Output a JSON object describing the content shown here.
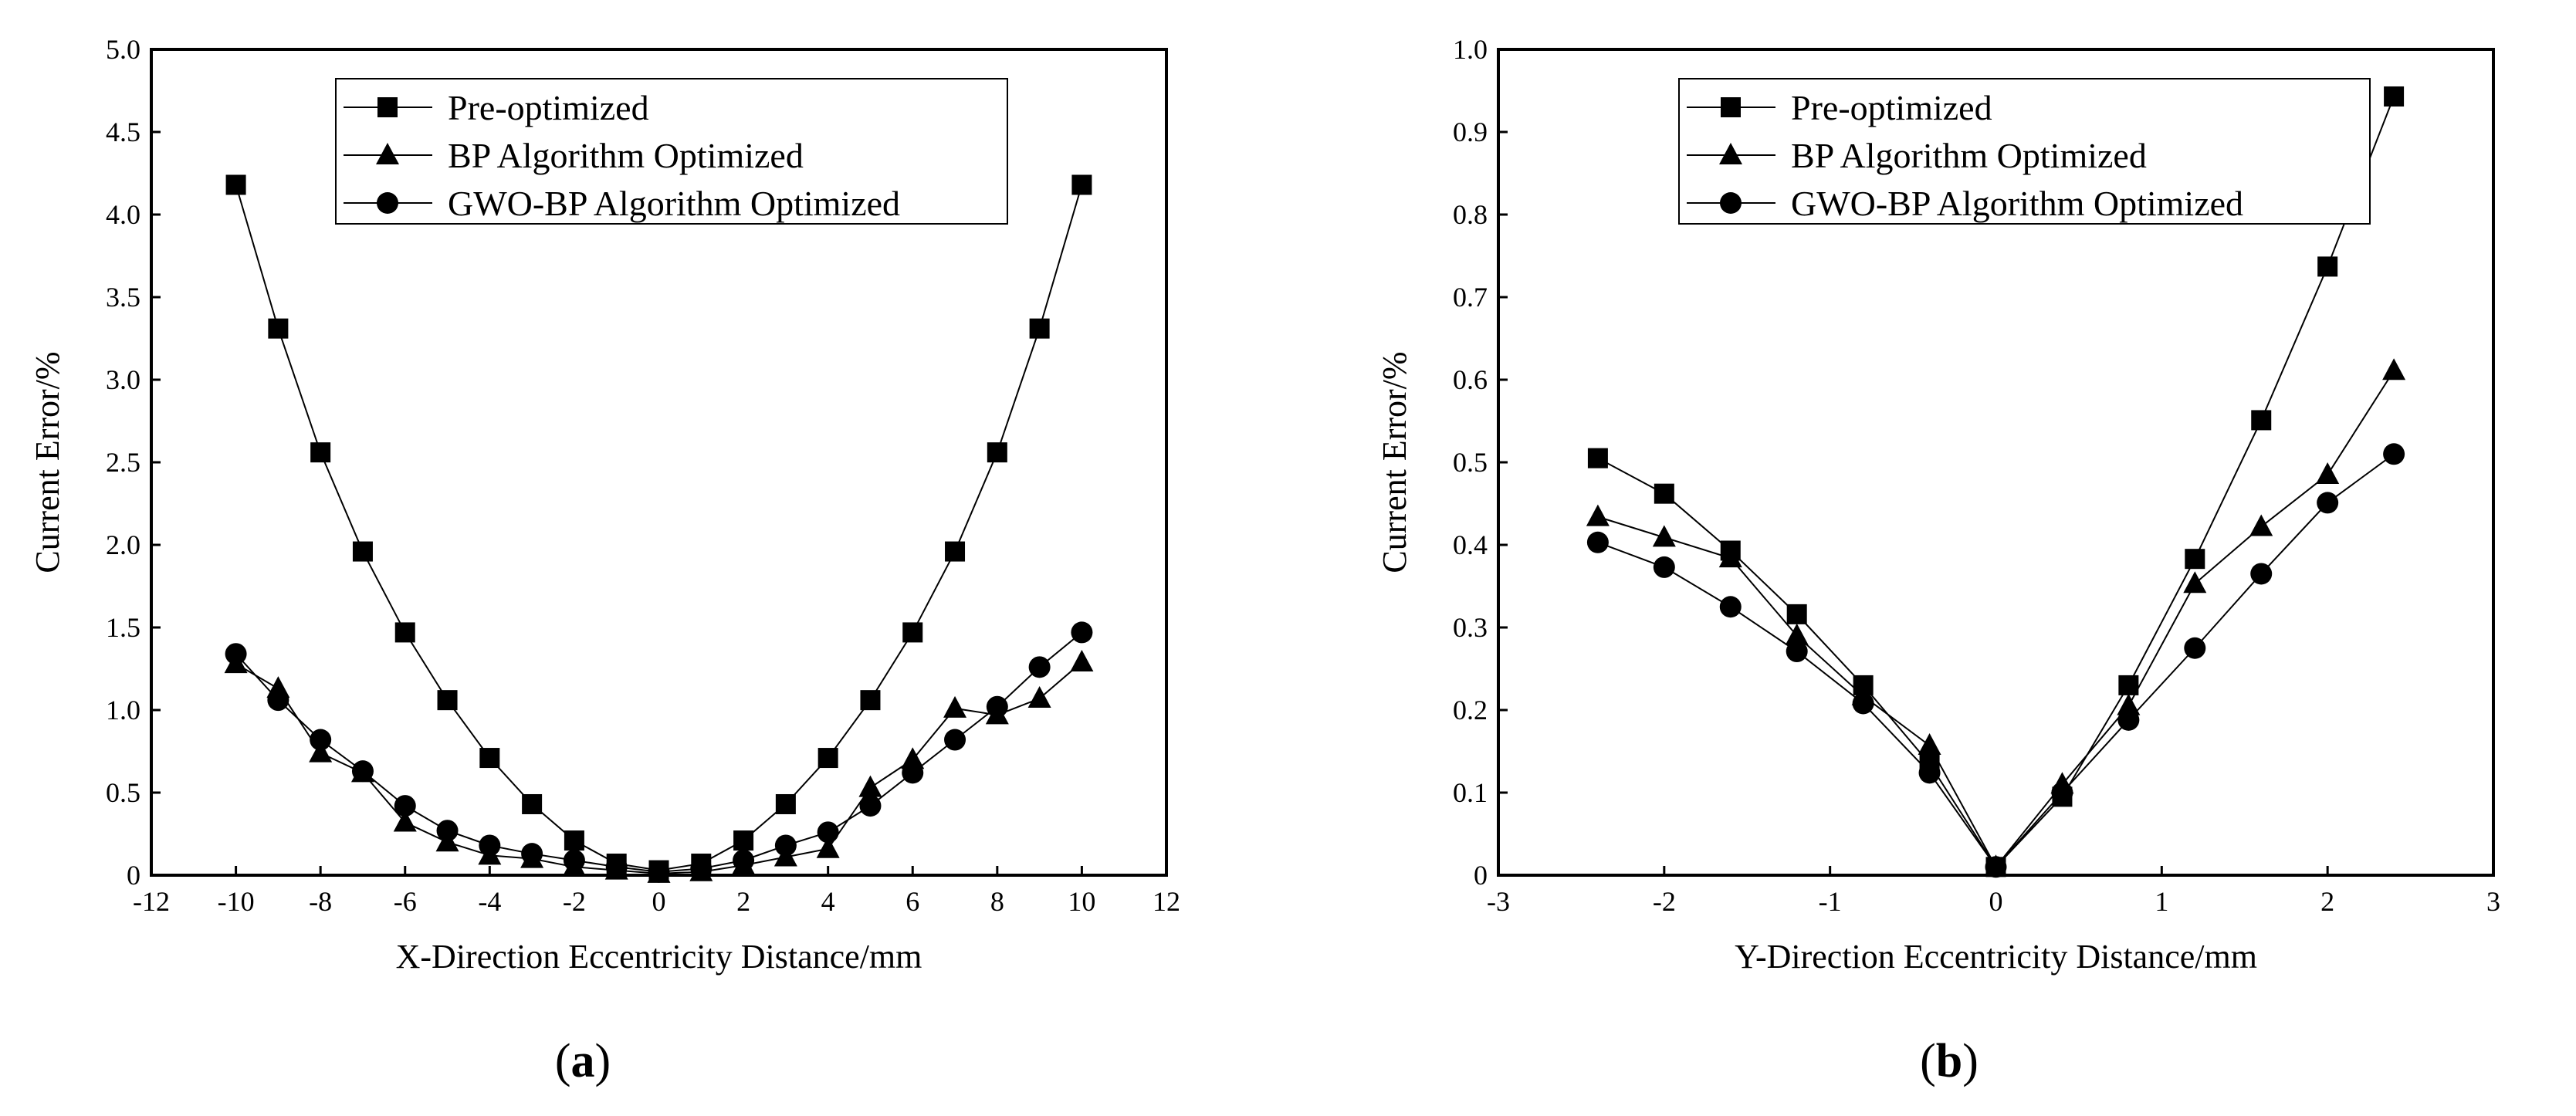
{
  "chart_data": [
    {
      "type": "line",
      "caption": "(a)",
      "caption_letter": "a",
      "xlabel": "X-Direction Eccentricity Distance/mm",
      "ylabel": "Current Error/%",
      "xlim": [
        -12,
        12
      ],
      "ylim": [
        0,
        5
      ],
      "xticks": [
        -12,
        -10,
        -8,
        -6,
        -4,
        -2,
        0,
        2,
        4,
        6,
        8,
        10,
        12
      ],
      "yticks": [
        "0",
        "0.5",
        "1.0",
        "1.5",
        "2.0",
        "2.5",
        "3.0",
        "3.5",
        "4.0",
        "4.5",
        "5.0"
      ],
      "legend_position": "top-center",
      "x": [
        -10,
        -9,
        -8,
        -7,
        -6,
        -5,
        -4,
        -3,
        -2,
        -1,
        0,
        1,
        2,
        3,
        4,
        5,
        6,
        7,
        8,
        9,
        10
      ],
      "series": [
        {
          "name": "Pre-optimized",
          "marker": "square",
          "values": [
            4.18,
            3.31,
            2.56,
            1.96,
            1.47,
            1.06,
            0.71,
            0.43,
            0.21,
            0.07,
            0.03,
            0.07,
            0.21,
            0.43,
            0.71,
            1.06,
            1.47,
            1.96,
            2.56,
            3.31,
            4.18
          ]
        },
        {
          "name": "BP Algorithm Optimized",
          "marker": "triangle",
          "values": [
            1.28,
            1.13,
            0.74,
            0.62,
            0.32,
            0.2,
            0.12,
            0.1,
            0.05,
            0.03,
            0.01,
            0.02,
            0.06,
            0.11,
            0.16,
            0.53,
            0.7,
            1.01,
            0.97,
            1.07,
            1.29
          ]
        },
        {
          "name": "GWO-BP Algorithm Optimized",
          "marker": "circle",
          "values": [
            1.34,
            1.06,
            0.82,
            0.63,
            0.42,
            0.27,
            0.18,
            0.13,
            0.09,
            0.05,
            0.02,
            0.04,
            0.09,
            0.18,
            0.26,
            0.42,
            0.62,
            0.82,
            1.02,
            1.26,
            1.47
          ]
        }
      ]
    },
    {
      "type": "line",
      "caption": "(b)",
      "caption_letter": "b",
      "xlabel": "Y-Direction Eccentricity Distance/mm",
      "ylabel": "Current Error/%",
      "xlim": [
        -3,
        3
      ],
      "ylim": [
        0,
        1
      ],
      "xticks": [
        -3,
        -2,
        -1,
        0,
        1,
        2,
        3
      ],
      "yticks": [
        "0",
        "0.1",
        "0.2",
        "0.3",
        "0.4",
        "0.5",
        "0.6",
        "0.7",
        "0.8",
        "0.9",
        "1.0"
      ],
      "legend_position": "top-center",
      "x": [
        -2.4,
        -2,
        -1.6,
        -1.2,
        -0.8,
        -0.4,
        0,
        0.4,
        0.8,
        1.2,
        1.6,
        2,
        2.4
      ],
      "series": [
        {
          "name": "Pre-optimized",
          "marker": "square",
          "values": [
            0.505,
            0.462,
            0.393,
            0.316,
            0.23,
            0.135,
            0.01,
            0.095,
            0.23,
            0.383,
            0.551,
            0.737,
            0.943
          ]
        },
        {
          "name": "BP Algorithm Optimized",
          "marker": "triangle",
          "values": [
            0.434,
            0.409,
            0.384,
            0.29,
            0.217,
            0.157,
            0.01,
            0.11,
            0.205,
            0.353,
            0.422,
            0.485,
            0.611
          ]
        },
        {
          "name": "GWO-BP Algorithm Optimized",
          "marker": "circle",
          "values": [
            0.403,
            0.373,
            0.325,
            0.271,
            0.208,
            0.124,
            0.01,
            0.1,
            0.188,
            0.275,
            0.365,
            0.451,
            0.51
          ]
        }
      ]
    }
  ]
}
